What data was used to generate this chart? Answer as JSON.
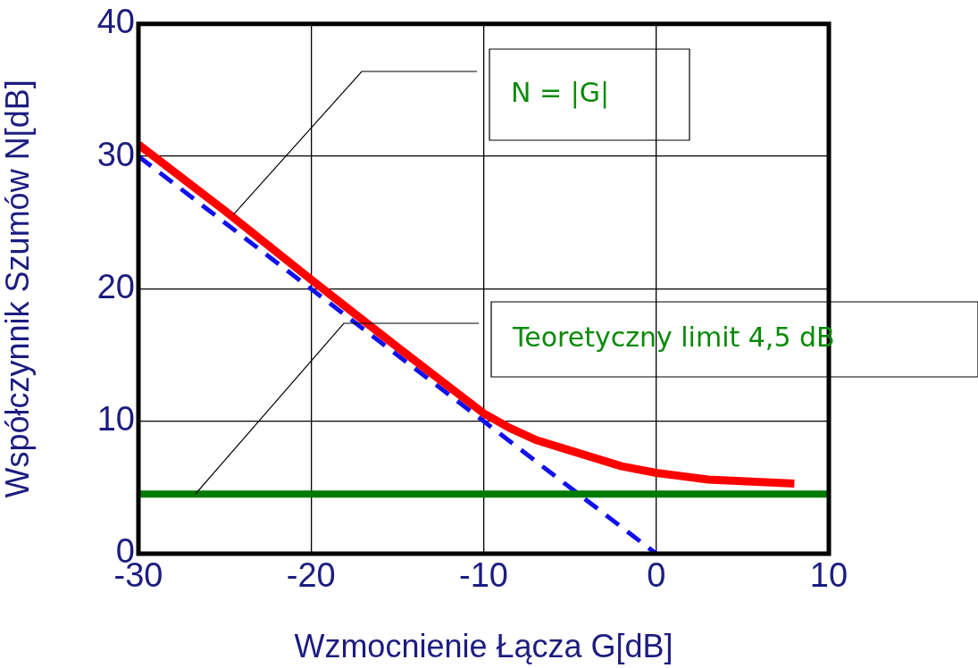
{
  "chart_data": {
    "type": "line",
    "xlabel": "Wzmocnienie Łącza G[dB]",
    "ylabel": "Współczynnik Szumów N[dB]",
    "xlim": [
      -30,
      10
    ],
    "xticks": [
      -30,
      -20,
      -10,
      0,
      10
    ],
    "ylim": [
      0,
      40
    ],
    "yticks": [
      0,
      10,
      20,
      30,
      40
    ],
    "grid": true,
    "legend": false,
    "marker": "none",
    "series": [
      {
        "color": "#ff0000",
        "line_style": "solid",
        "x": [
          -30,
          -25,
          -20,
          -15,
          -10,
          -8.5,
          -7,
          -5,
          -2,
          0,
          3,
          8
        ],
        "values": [
          30.9,
          25.9,
          20.7,
          15.6,
          10.6,
          9.5,
          8.6,
          7.8,
          6.6,
          6.1,
          5.6,
          5.3
        ]
      },
      {
        "color": "#1010ee",
        "line_style": "dashed",
        "x": [
          -30,
          0
        ],
        "values": [
          30,
          0
        ]
      }
    ],
    "ref_lines": [
      {
        "axis": "y",
        "value": 4.5,
        "color": "#007a00",
        "line_style": "solid"
      }
    ],
    "annotations": [
      {
        "text": "N = |G|",
        "x": -24.5,
        "y": 25.6
      },
      {
        "text": "Teoretyczny limit 4,5 dB",
        "x": -26.7,
        "y": 4.5
      }
    ]
  }
}
